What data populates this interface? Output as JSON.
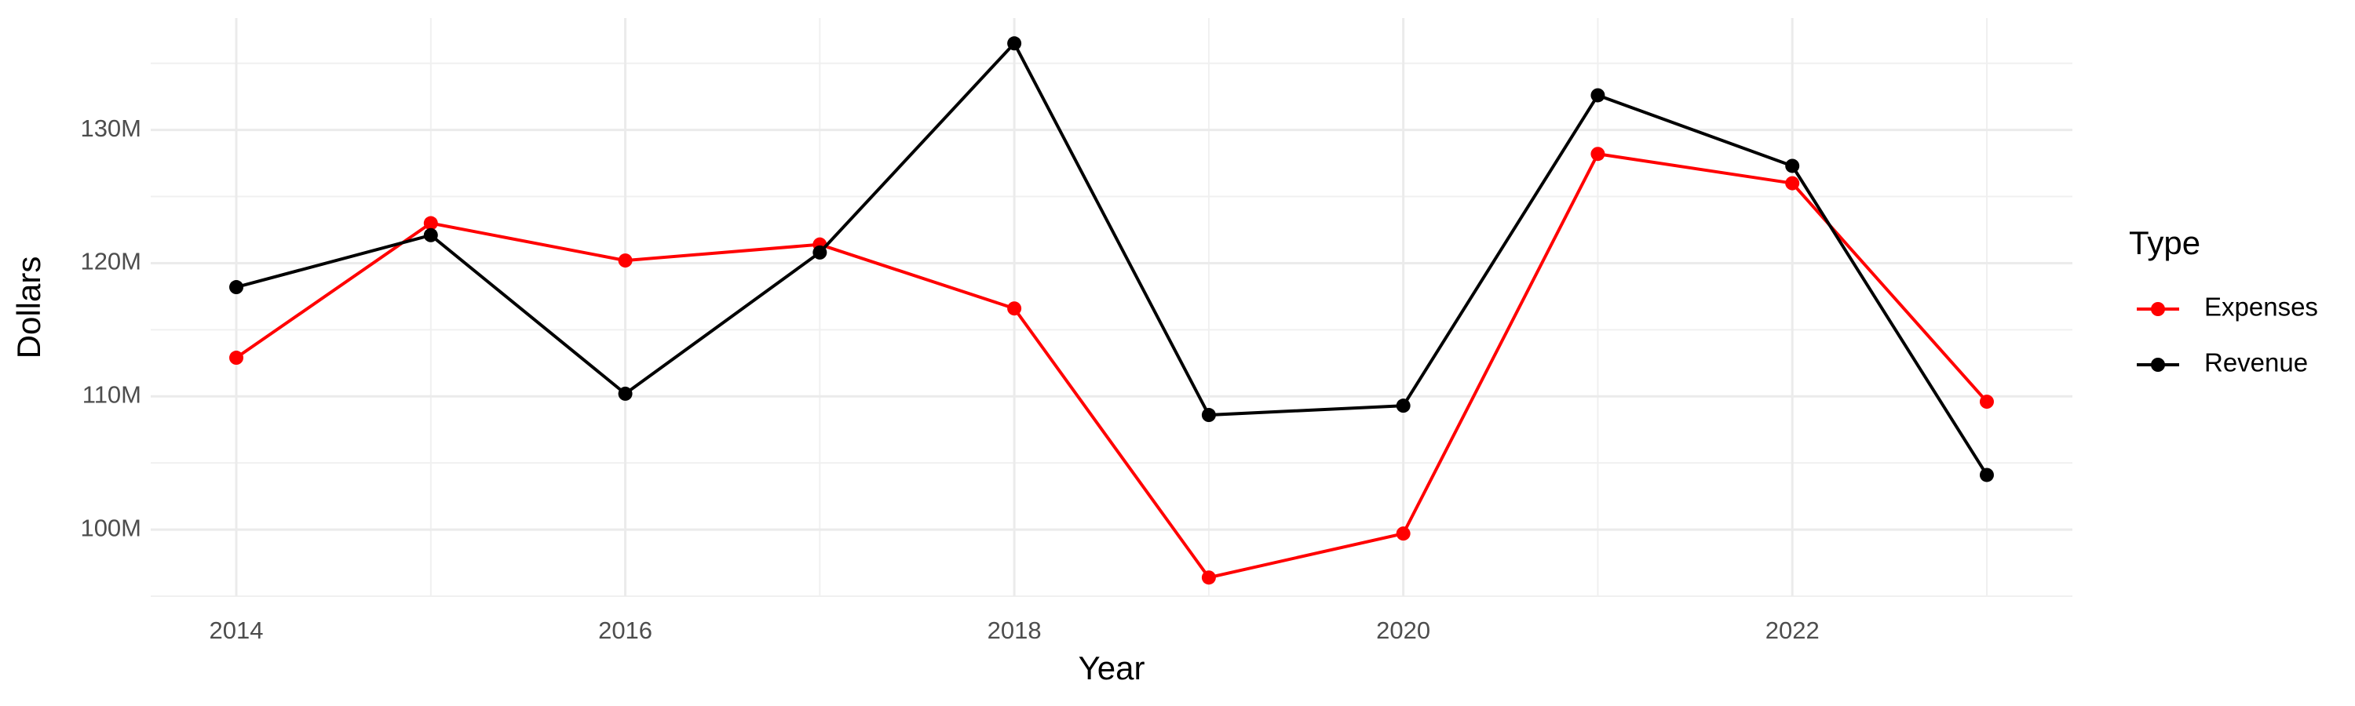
{
  "chart_data": {
    "type": "line",
    "x_label": "Year",
    "y_label": "Dollars",
    "legend_title": "Type",
    "legend_position": "right",
    "grid": true,
    "x": [
      2014,
      2015,
      2016,
      2017,
      2018,
      2019,
      2020,
      2021,
      2022,
      2023
    ],
    "series": [
      {
        "name": "Expenses",
        "color": "#ff0000",
        "values": [
          112900000,
          123000000,
          120200000,
          121400000,
          116600000,
          96400000,
          99700000,
          128200000,
          126000000,
          109600000
        ]
      },
      {
        "name": "Revenue",
        "color": "#000000",
        "values": [
          118200000,
          122100000,
          110200000,
          120800000,
          136500000,
          108600000,
          109300000,
          132600000,
          127300000,
          104100000
        ]
      }
    ],
    "xlim": [
      2013.56,
      2023.44
    ],
    "xticks": [
      2014,
      2016,
      2018,
      2020,
      2022
    ],
    "ylim": [
      95000000,
      138400000
    ],
    "yticks": [
      {
        "value": 100000000,
        "label": "100M"
      },
      {
        "value": 110000000,
        "label": "110M"
      },
      {
        "value": 120000000,
        "label": "120M"
      },
      {
        "value": 130000000,
        "label": "130M"
      }
    ]
  }
}
